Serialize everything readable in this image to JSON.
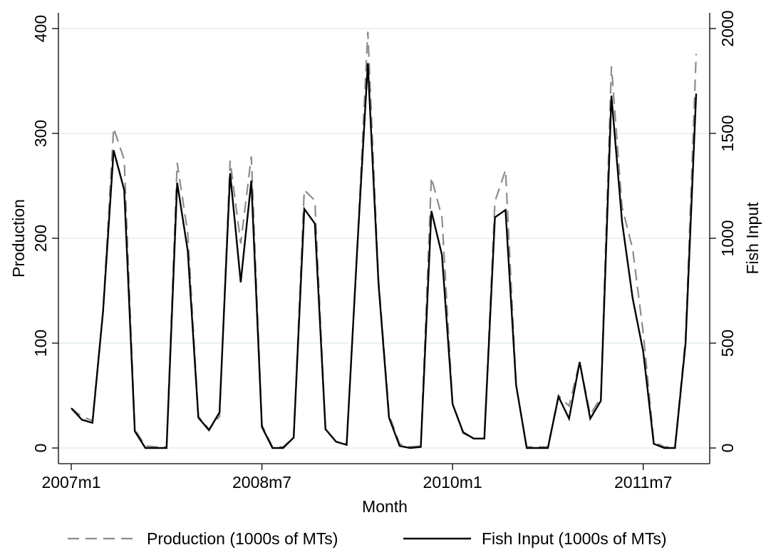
{
  "chart_data": {
    "type": "line",
    "title": "",
    "xlabel": "Month",
    "ylabel_left": "Production",
    "ylabel_right": "Fish Input",
    "x_start": "2007m1",
    "x_tick_labels": [
      "2007m1",
      "2008m7",
      "2010m1",
      "2011m7"
    ],
    "x_tick_months": [
      0,
      18,
      36,
      54
    ],
    "x_range": [
      0,
      59
    ],
    "ylim_left": [
      0,
      400
    ],
    "yticks_left": [
      0,
      100,
      200,
      300,
      400
    ],
    "ylim_right": [
      0,
      2000
    ],
    "yticks_right": [
      0,
      500,
      1000,
      1500,
      2000
    ],
    "grid": true,
    "legend_position": "bottom",
    "colors": {
      "grid": "#dde9ea",
      "production": "#8c8c8c",
      "fish_input": "#000000",
      "axis": "#000000"
    },
    "series": [
      {
        "name": "Production (1000s of MTs)",
        "axis": "left",
        "style": "dashed",
        "values": [
          38,
          30,
          26,
          130,
          305,
          275,
          18,
          2,
          1,
          1,
          272,
          205,
          30,
          18,
          30,
          274,
          195,
          278,
          22,
          1,
          1,
          10,
          246,
          236,
          18,
          6,
          4,
          190,
          397,
          162,
          32,
          4,
          1,
          2,
          258,
          220,
          42,
          14,
          9,
          9,
          235,
          265,
          60,
          1,
          1,
          1,
          50,
          40,
          82,
          32,
          48,
          364,
          230,
          190,
          110,
          6,
          1,
          1,
          105,
          376
        ]
      },
      {
        "name": "Fish Input (1000s of MTs)",
        "axis": "right",
        "style": "solid",
        "values": [
          190,
          135,
          120,
          650,
          1420,
          1230,
          80,
          0,
          0,
          0,
          1265,
          940,
          145,
          85,
          170,
          1310,
          790,
          1275,
          100,
          0,
          0,
          50,
          1140,
          1070,
          90,
          30,
          15,
          950,
          1835,
          790,
          145,
          10,
          0,
          5,
          1130,
          920,
          210,
          75,
          45,
          45,
          1100,
          1135,
          300,
          0,
          0,
          0,
          245,
          140,
          410,
          140,
          225,
          1680,
          1080,
          715,
          460,
          20,
          0,
          0,
          500,
          1690
        ]
      }
    ]
  }
}
